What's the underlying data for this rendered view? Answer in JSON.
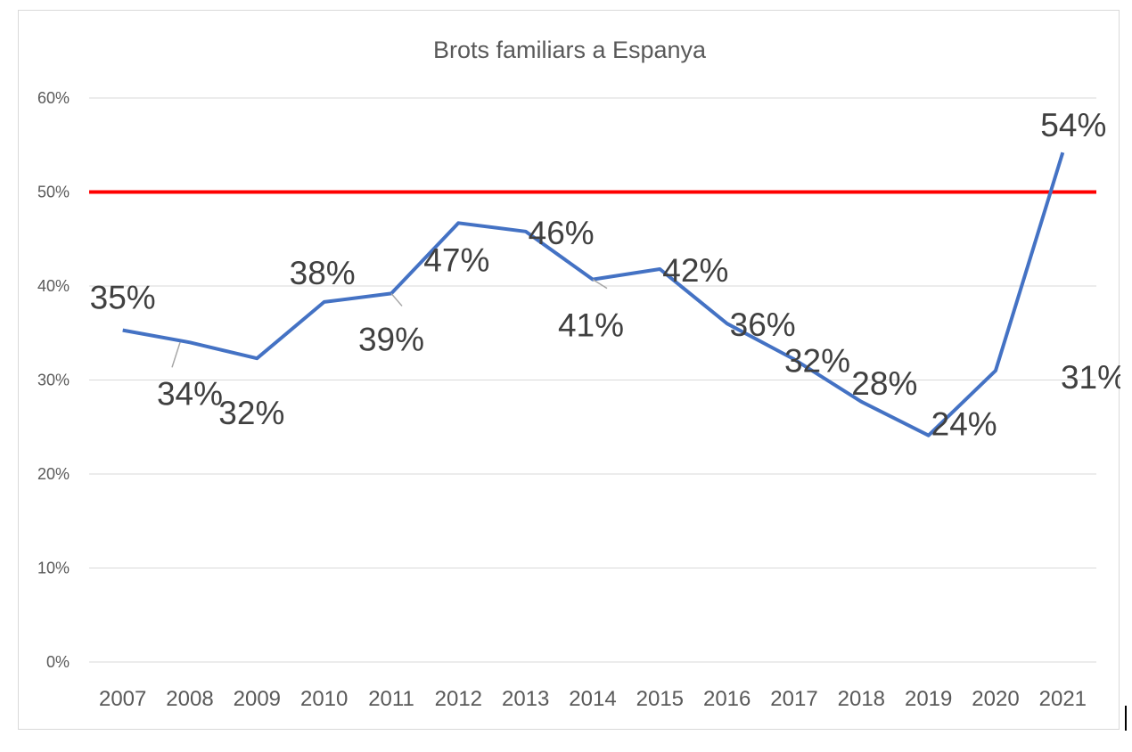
{
  "chart_data": {
    "type": "line",
    "title": "Brots familiars a Espanya",
    "categories": [
      "2007",
      "2008",
      "2009",
      "2010",
      "2011",
      "2012",
      "2013",
      "2014",
      "2015",
      "2016",
      "2017",
      "2018",
      "2019",
      "2020",
      "2021"
    ],
    "series": [
      {
        "values": [
          35.3,
          34.0,
          32.3,
          38.3,
          39.2,
          46.7,
          45.8,
          40.7,
          41.8,
          36.0,
          32.2,
          27.7,
          24.1,
          31.0,
          54.2
        ],
        "labels": [
          "35%",
          "34%",
          "32%",
          "38%",
          "39%",
          "47%",
          "46%",
          "41%",
          "42%",
          "36%",
          "32%",
          "28%",
          "24%",
          "31%",
          "54%"
        ],
        "color": "#4472c4"
      }
    ],
    "reference_line": {
      "value": 50,
      "color": "#ff0000"
    },
    "ylim": [
      0,
      60
    ],
    "yticks": [
      0,
      10,
      20,
      30,
      40,
      50,
      60
    ],
    "ytick_labels": [
      "0%",
      "10%",
      "20%",
      "30%",
      "40%",
      "50%",
      "60%"
    ],
    "grid": true,
    "legend": "none",
    "xlabel": "",
    "ylabel": ""
  }
}
